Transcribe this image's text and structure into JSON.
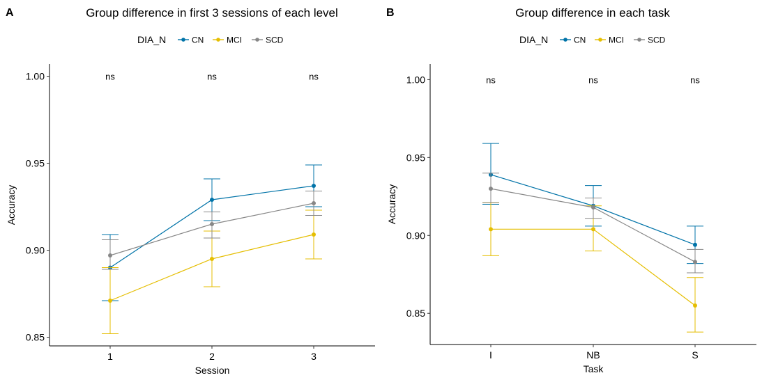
{
  "chart_data": [
    {
      "type": "line",
      "panel_tag": "A",
      "title": "Group difference in first 3 sessions of each level",
      "legend_title": "DIA_N",
      "legend_position": "top",
      "xlabel": "Session",
      "ylabel": "Accuracy",
      "categories": [
        "1",
        "2",
        "3"
      ],
      "ylim": [
        0.845,
        1.007
      ],
      "yticks": [
        0.85,
        0.9,
        0.95,
        1.0
      ],
      "ytick_labels": [
        "0.85",
        "0.90",
        "0.95",
        "1.00"
      ],
      "grid": false,
      "annotations": [
        "ns",
        "ns",
        "ns"
      ],
      "annotation_y": 1.0,
      "series": [
        {
          "name": "CN",
          "color": "#0073A8",
          "values": [
            0.89,
            0.929,
            0.937
          ],
          "lower": [
            0.871,
            0.917,
            0.925
          ],
          "upper": [
            0.909,
            0.941,
            0.949
          ]
        },
        {
          "name": "MCI",
          "color": "#E5BE01",
          "values": [
            0.871,
            0.895,
            0.909
          ],
          "lower": [
            0.852,
            0.879,
            0.895
          ],
          "upper": [
            0.89,
            0.911,
            0.923
          ]
        },
        {
          "name": "SCD",
          "color": "#878787",
          "values": [
            0.897,
            0.915,
            0.927
          ],
          "lower": [
            0.889,
            0.907,
            0.92
          ],
          "upper": [
            0.906,
            0.922,
            0.934
          ]
        }
      ]
    },
    {
      "type": "line",
      "panel_tag": "B",
      "title": "Group difference in each task",
      "legend_title": "DIA_N",
      "legend_position": "top",
      "xlabel": "Task",
      "ylabel": "Accuracy",
      "categories": [
        "I",
        "NB",
        "S"
      ],
      "ylim": [
        0.83,
        1.01
      ],
      "yticks": [
        0.85,
        0.9,
        0.95,
        1.0
      ],
      "ytick_labels": [
        "0.85",
        "0.90",
        "0.95",
        "1.00"
      ],
      "grid": false,
      "annotations": [
        "ns",
        "ns",
        "ns"
      ],
      "annotation_y": 1.0,
      "series": [
        {
          "name": "CN",
          "color": "#0073A8",
          "values": [
            0.939,
            0.919,
            0.894
          ],
          "lower": [
            0.92,
            0.906,
            0.882
          ],
          "upper": [
            0.959,
            0.932,
            0.906
          ]
        },
        {
          "name": "MCI",
          "color": "#E5BE01",
          "values": [
            0.904,
            0.904,
            0.855
          ],
          "lower": [
            0.887,
            0.89,
            0.838
          ],
          "upper": [
            0.921,
            0.919,
            0.873
          ]
        },
        {
          "name": "SCD",
          "color": "#878787",
          "values": [
            0.93,
            0.918,
            0.883
          ],
          "lower": [
            0.921,
            0.911,
            0.876
          ],
          "upper": [
            0.94,
            0.924,
            0.891
          ]
        }
      ]
    }
  ]
}
